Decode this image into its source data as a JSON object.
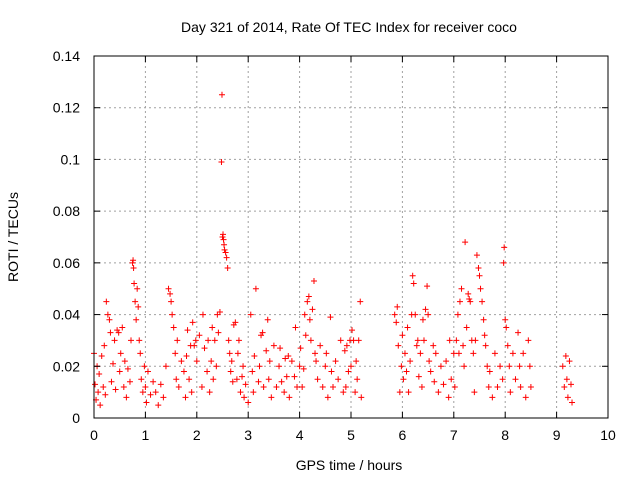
{
  "chart_data": {
    "type": "scatter",
    "title": "Day 321 of 2014, Rate Of TEC Index for receiver coco",
    "xlabel": "GPS time / hours",
    "ylabel": "ROTI / TECUs",
    "xlim": [
      0,
      10
    ],
    "ylim": [
      0,
      0.14
    ],
    "x_ticks": [
      0,
      1,
      2,
      3,
      4,
      5,
      6,
      7,
      8,
      9,
      10
    ],
    "x_tick_labels": [
      "0",
      "1",
      "2",
      "3",
      "4",
      "5",
      "6",
      "7",
      "8",
      "9",
      "10"
    ],
    "y_ticks": [
      0,
      0.02,
      0.04,
      0.06,
      0.08,
      0.1,
      0.12,
      0.14
    ],
    "y_tick_labels": [
      "0",
      "0.02",
      "0.04",
      "0.06",
      "0.08",
      "0.1",
      "0.12",
      "0.14"
    ],
    "grid": true,
    "marker": "+",
    "color": "#ff0000",
    "series": [
      {
        "name": "ROTI",
        "points": [
          [
            0.0,
            0.025
          ],
          [
            0.02,
            0.013
          ],
          [
            0.04,
            0.007
          ],
          [
            0.06,
            0.02
          ],
          [
            0.08,
            0.01
          ],
          [
            0.1,
            0.017
          ],
          [
            0.12,
            0.005
          ],
          [
            0.15,
            0.024
          ],
          [
            0.18,
            0.012
          ],
          [
            0.2,
            0.028
          ],
          [
            0.22,
            0.009
          ],
          [
            0.24,
            0.045
          ],
          [
            0.27,
            0.04
          ],
          [
            0.3,
            0.038
          ],
          [
            0.32,
            0.033
          ],
          [
            0.34,
            0.014
          ],
          [
            0.37,
            0.021
          ],
          [
            0.4,
            0.03
          ],
          [
            0.42,
            0.011
          ],
          [
            0.45,
            0.034
          ],
          [
            0.48,
            0.033
          ],
          [
            0.5,
            0.018
          ],
          [
            0.52,
            0.025
          ],
          [
            0.55,
            0.035
          ],
          [
            0.58,
            0.012
          ],
          [
            0.6,
            0.022
          ],
          [
            0.63,
            0.008
          ],
          [
            0.66,
            0.019
          ],
          [
            0.7,
            0.014
          ],
          [
            0.72,
            0.03
          ],
          [
            0.75,
            0.06
          ],
          [
            0.76,
            0.061
          ],
          [
            0.77,
            0.058
          ],
          [
            0.78,
            0.052
          ],
          [
            0.8,
            0.045
          ],
          [
            0.82,
            0.038
          ],
          [
            0.84,
            0.05
          ],
          [
            0.86,
            0.043
          ],
          [
            0.88,
            0.03
          ],
          [
            0.9,
            0.025
          ],
          [
            0.92,
            0.015
          ],
          [
            0.95,
            0.01
          ],
          [
            0.98,
            0.02
          ],
          [
            1.0,
            0.012
          ],
          [
            1.02,
            0.006
          ],
          [
            1.05,
            0.018
          ],
          [
            1.1,
            0.009
          ],
          [
            1.15,
            0.014
          ],
          [
            1.2,
            0.01
          ],
          [
            1.25,
            0.005
          ],
          [
            1.3,
            0.013
          ],
          [
            1.35,
            0.008
          ],
          [
            1.4,
            0.02
          ],
          [
            1.45,
            0.05
          ],
          [
            1.48,
            0.048
          ],
          [
            1.5,
            0.045
          ],
          [
            1.52,
            0.04
          ],
          [
            1.55,
            0.035
          ],
          [
            1.58,
            0.025
          ],
          [
            1.6,
            0.015
          ],
          [
            1.62,
            0.03
          ],
          [
            1.65,
            0.012
          ],
          [
            1.7,
            0.022
          ],
          [
            1.75,
            0.018
          ],
          [
            1.78,
            0.008
          ],
          [
            1.8,
            0.024
          ],
          [
            1.82,
            0.034
          ],
          [
            1.85,
            0.015
          ],
          [
            1.88,
            0.028
          ],
          [
            1.9,
            0.01
          ],
          [
            1.92,
            0.037
          ],
          [
            1.95,
            0.028
          ],
          [
            1.98,
            0.03
          ],
          [
            2.0,
            0.022
          ],
          [
            2.05,
            0.032
          ],
          [
            2.1,
            0.012
          ],
          [
            2.12,
            0.04
          ],
          [
            2.15,
            0.027
          ],
          [
            2.2,
            0.018
          ],
          [
            2.22,
            0.03
          ],
          [
            2.25,
            0.01
          ],
          [
            2.28,
            0.022
          ],
          [
            2.3,
            0.035
          ],
          [
            2.32,
            0.015
          ],
          [
            2.35,
            0.03
          ],
          [
            2.38,
            0.02
          ],
          [
            2.4,
            0.04
          ],
          [
            2.42,
            0.033
          ],
          [
            2.45,
            0.041
          ],
          [
            2.48,
            0.099
          ],
          [
            2.49,
            0.125
          ],
          [
            2.5,
            0.07
          ],
          [
            2.51,
            0.071
          ],
          [
            2.52,
            0.069
          ],
          [
            2.53,
            0.067
          ],
          [
            2.54,
            0.065
          ],
          [
            2.56,
            0.064
          ],
          [
            2.58,
            0.062
          ],
          [
            2.6,
            0.058
          ],
          [
            2.62,
            0.03
          ],
          [
            2.64,
            0.025
          ],
          [
            2.66,
            0.018
          ],
          [
            2.68,
            0.022
          ],
          [
            2.7,
            0.014
          ],
          [
            2.72,
            0.036
          ],
          [
            2.75,
            0.037
          ],
          [
            2.78,
            0.015
          ],
          [
            2.8,
            0.025
          ],
          [
            2.82,
            0.03
          ],
          [
            2.85,
            0.01
          ],
          [
            2.88,
            0.016
          ],
          [
            2.9,
            0.02
          ],
          [
            2.92,
            0.008
          ],
          [
            2.95,
            0.013
          ],
          [
            3.0,
            0.006
          ],
          [
            3.05,
            0.04
          ],
          [
            3.08,
            0.018
          ],
          [
            3.1,
            0.01
          ],
          [
            3.12,
            0.024
          ],
          [
            3.15,
            0.05
          ],
          [
            3.2,
            0.014
          ],
          [
            3.22,
            0.02
          ],
          [
            3.25,
            0.032
          ],
          [
            3.28,
            0.033
          ],
          [
            3.3,
            0.012
          ],
          [
            3.35,
            0.026
          ],
          [
            3.38,
            0.038
          ],
          [
            3.4,
            0.015
          ],
          [
            3.42,
            0.022
          ],
          [
            3.45,
            0.008
          ],
          [
            3.5,
            0.028
          ],
          [
            3.55,
            0.012
          ],
          [
            3.6,
            0.02
          ],
          [
            3.62,
            0.027
          ],
          [
            3.65,
            0.014
          ],
          [
            3.7,
            0.01
          ],
          [
            3.72,
            0.023
          ],
          [
            3.75,
            0.016
          ],
          [
            3.78,
            0.024
          ],
          [
            3.8,
            0.008
          ],
          [
            3.85,
            0.022
          ],
          [
            3.9,
            0.016
          ],
          [
            3.92,
            0.035
          ],
          [
            3.95,
            0.012
          ],
          [
            4.0,
            0.02
          ],
          [
            4.02,
            0.027
          ],
          [
            4.05,
            0.012
          ],
          [
            4.08,
            0.019
          ],
          [
            4.1,
            0.04
          ],
          [
            4.12,
            0.032
          ],
          [
            4.15,
            0.045
          ],
          [
            4.18,
            0.047
          ],
          [
            4.2,
            0.038
          ],
          [
            4.22,
            0.03
          ],
          [
            4.25,
            0.042
          ],
          [
            4.28,
            0.053
          ],
          [
            4.3,
            0.025
          ],
          [
            4.32,
            0.022
          ],
          [
            4.35,
            0.015
          ],
          [
            4.4,
            0.028
          ],
          [
            4.45,
            0.012
          ],
          [
            4.5,
            0.02
          ],
          [
            4.52,
            0.025
          ],
          [
            4.55,
            0.008
          ],
          [
            4.6,
            0.039
          ],
          [
            4.62,
            0.018
          ],
          [
            4.65,
            0.012
          ],
          [
            4.7,
            0.022
          ],
          [
            4.75,
            0.015
          ],
          [
            4.8,
            0.03
          ],
          [
            4.85,
            0.01
          ],
          [
            4.88,
            0.026
          ],
          [
            4.9,
            0.012
          ],
          [
            4.92,
            0.028
          ],
          [
            4.95,
            0.018
          ],
          [
            4.98,
            0.03
          ],
          [
            5.0,
            0.02
          ],
          [
            5.02,
            0.034
          ],
          [
            5.05,
            0.03
          ],
          [
            5.08,
            0.01
          ],
          [
            5.1,
            0.022
          ],
          [
            5.12,
            0.015
          ],
          [
            5.15,
            0.03
          ],
          [
            5.18,
            0.045
          ],
          [
            5.2,
            0.008
          ],
          [
            5.85,
            0.04
          ],
          [
            5.88,
            0.037
          ],
          [
            5.9,
            0.043
          ],
          [
            5.92,
            0.028
          ],
          [
            5.95,
            0.01
          ],
          [
            5.98,
            0.02
          ],
          [
            6.0,
            0.032
          ],
          [
            6.02,
            0.015
          ],
          [
            6.05,
            0.025
          ],
          [
            6.08,
            0.018
          ],
          [
            6.1,
            0.035
          ],
          [
            6.12,
            0.01
          ],
          [
            6.15,
            0.022
          ],
          [
            6.18,
            0.04
          ],
          [
            6.2,
            0.055
          ],
          [
            6.22,
            0.052
          ],
          [
            6.25,
            0.04
          ],
          [
            6.28,
            0.028
          ],
          [
            6.3,
            0.03
          ],
          [
            6.32,
            0.016
          ],
          [
            6.35,
            0.025
          ],
          [
            6.38,
            0.012
          ],
          [
            6.4,
            0.038
          ],
          [
            6.42,
            0.03
          ],
          [
            6.45,
            0.042
          ],
          [
            6.48,
            0.051
          ],
          [
            6.5,
            0.04
          ],
          [
            6.52,
            0.022
          ],
          [
            6.55,
            0.018
          ],
          [
            6.6,
            0.028
          ],
          [
            6.62,
            0.014
          ],
          [
            6.65,
            0.025
          ],
          [
            6.7,
            0.01
          ],
          [
            6.75,
            0.02
          ],
          [
            6.8,
            0.013
          ],
          [
            6.85,
            0.022
          ],
          [
            6.9,
            0.008
          ],
          [
            6.92,
            0.03
          ],
          [
            6.95,
            0.015
          ],
          [
            7.0,
            0.025
          ],
          [
            7.02,
            0.012
          ],
          [
            7.05,
            0.03
          ],
          [
            7.08,
            0.04
          ],
          [
            7.1,
            0.025
          ],
          [
            7.12,
            0.045
          ],
          [
            7.15,
            0.05
          ],
          [
            7.18,
            0.028
          ],
          [
            7.2,
            0.02
          ],
          [
            7.22,
            0.068
          ],
          [
            7.25,
            0.035
          ],
          [
            7.28,
            0.048
          ],
          [
            7.3,
            0.046
          ],
          [
            7.32,
            0.045
          ],
          [
            7.35,
            0.03
          ],
          [
            7.38,
            0.025
          ],
          [
            7.4,
            0.01
          ],
          [
            7.42,
            0.03
          ],
          [
            7.45,
            0.063
          ],
          [
            7.48,
            0.058
          ],
          [
            7.5,
            0.055
          ],
          [
            7.52,
            0.05
          ],
          [
            7.55,
            0.045
          ],
          [
            7.58,
            0.038
          ],
          [
            7.6,
            0.032
          ],
          [
            7.62,
            0.028
          ],
          [
            7.65,
            0.02
          ],
          [
            7.68,
            0.012
          ],
          [
            7.7,
            0.018
          ],
          [
            7.75,
            0.008
          ],
          [
            7.8,
            0.025
          ],
          [
            7.85,
            0.012
          ],
          [
            7.9,
            0.02
          ],
          [
            7.95,
            0.015
          ],
          [
            7.97,
            0.06
          ],
          [
            7.98,
            0.066
          ],
          [
            8.0,
            0.038
          ],
          [
            8.02,
            0.035
          ],
          [
            8.05,
            0.028
          ],
          [
            8.08,
            0.02
          ],
          [
            8.1,
            0.01
          ],
          [
            8.15,
            0.025
          ],
          [
            8.2,
            0.015
          ],
          [
            8.25,
            0.033
          ],
          [
            8.28,
            0.02
          ],
          [
            8.3,
            0.012
          ],
          [
            8.35,
            0.025
          ],
          [
            8.4,
            0.008
          ],
          [
            8.45,
            0.03
          ],
          [
            8.48,
            0.02
          ],
          [
            8.5,
            0.012
          ],
          [
            9.12,
            0.02
          ],
          [
            9.15,
            0.012
          ],
          [
            9.18,
            0.024
          ],
          [
            9.2,
            0.015
          ],
          [
            9.22,
            0.008
          ],
          [
            9.25,
            0.022
          ],
          [
            9.28,
            0.013
          ],
          [
            9.3,
            0.006
          ]
        ]
      }
    ]
  }
}
